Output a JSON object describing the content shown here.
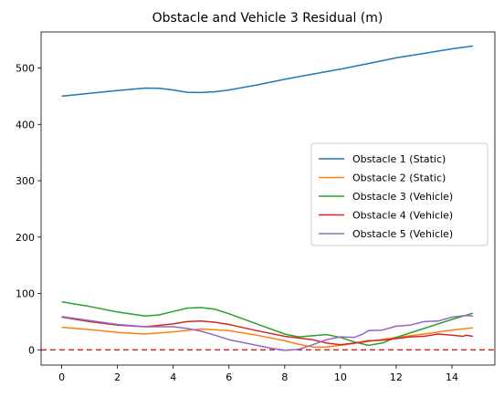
{
  "chart_data": {
    "type": "line",
    "title": "Obstacle and Vehicle 3 Residual (m)",
    "xlabel": "",
    "ylabel": "",
    "xlim": [
      -0.74,
      15.54
    ],
    "ylim": [
      -27,
      564
    ],
    "x_ticks": [
      0,
      2,
      4,
      6,
      8,
      10,
      12,
      14
    ],
    "y_ticks": [
      0,
      100,
      200,
      300,
      400,
      500
    ],
    "legend_position": "center-right",
    "reference_line": {
      "y": 0,
      "color": "#d62728",
      "style": "dashed"
    },
    "series": [
      {
        "name": "Obstacle 1 (Static)",
        "color": "#1f77b4",
        "points": [
          [
            0,
            450
          ],
          [
            1,
            455
          ],
          [
            2,
            460
          ],
          [
            3,
            464.5
          ],
          [
            3.5,
            464
          ],
          [
            4,
            461
          ],
          [
            4.5,
            457
          ],
          [
            5,
            456.5
          ],
          [
            5.5,
            458
          ],
          [
            6,
            461
          ],
          [
            7,
            470
          ],
          [
            8,
            480
          ],
          [
            9,
            489
          ],
          [
            10,
            498
          ],
          [
            11,
            508
          ],
          [
            12,
            518
          ],
          [
            13,
            526
          ],
          [
            14,
            534
          ],
          [
            14.75,
            539
          ]
        ]
      },
      {
        "name": "Obstacle 2 (Static)",
        "color": "#ff7f0e",
        "points": [
          [
            0,
            40
          ],
          [
            1,
            36
          ],
          [
            2,
            31
          ],
          [
            3,
            28
          ],
          [
            4,
            32
          ],
          [
            5,
            37
          ],
          [
            6,
            34
          ],
          [
            7,
            26
          ],
          [
            8,
            16
          ],
          [
            8.5,
            10
          ],
          [
            9,
            5
          ],
          [
            9.5,
            5
          ],
          [
            10,
            8
          ],
          [
            11,
            15
          ],
          [
            12,
            22
          ],
          [
            13,
            28
          ],
          [
            14,
            35
          ],
          [
            14.75,
            39
          ]
        ]
      },
      {
        "name": "Obstacle 3 (Vehicle)",
        "color": "#2ca02c",
        "points": [
          [
            0,
            85
          ],
          [
            1,
            77
          ],
          [
            2,
            67
          ],
          [
            3,
            60
          ],
          [
            3.5,
            62
          ],
          [
            4,
            68
          ],
          [
            4.5,
            74
          ],
          [
            5,
            75
          ],
          [
            5.5,
            72
          ],
          [
            6,
            64
          ],
          [
            7,
            46
          ],
          [
            8,
            28
          ],
          [
            8.5,
            23
          ],
          [
            9,
            25
          ],
          [
            9.5,
            27
          ],
          [
            10,
            22
          ],
          [
            10.5,
            14
          ],
          [
            11,
            8
          ],
          [
            11.5,
            12
          ],
          [
            12,
            22
          ],
          [
            13,
            38
          ],
          [
            14,
            54
          ],
          [
            14.75,
            65
          ]
        ]
      },
      {
        "name": "Obstacle 4 (Vehicle)",
        "color": "#d62728",
        "points": [
          [
            0,
            58
          ],
          [
            1,
            50
          ],
          [
            2,
            44
          ],
          [
            3,
            41
          ],
          [
            4,
            46
          ],
          [
            4.5,
            50
          ],
          [
            5,
            51
          ],
          [
            5.5,
            49
          ],
          [
            6,
            45
          ],
          [
            7,
            34
          ],
          [
            8,
            24
          ],
          [
            9,
            18
          ],
          [
            9.5,
            12
          ],
          [
            10,
            9
          ],
          [
            10.5,
            12
          ],
          [
            11,
            16
          ],
          [
            11.5,
            17
          ],
          [
            12,
            20
          ],
          [
            12.5,
            23
          ],
          [
            13,
            24
          ],
          [
            13.5,
            28
          ],
          [
            14,
            26
          ],
          [
            14.4,
            24
          ],
          [
            14.5,
            26
          ],
          [
            14.75,
            24
          ]
        ]
      },
      {
        "name": "Obstacle 5 (Vehicle)",
        "color": "#9467bd",
        "points": [
          [
            0,
            59
          ],
          [
            1,
            52
          ],
          [
            2,
            45
          ],
          [
            3,
            41
          ],
          [
            4,
            41
          ],
          [
            4.5,
            38
          ],
          [
            5,
            33
          ],
          [
            5.5,
            26
          ],
          [
            6,
            18
          ],
          [
            7,
            8
          ],
          [
            7.5,
            3
          ],
          [
            8,
            -1
          ],
          [
            8.5,
            1
          ],
          [
            9,
            9
          ],
          [
            9.5,
            18
          ],
          [
            10,
            23
          ],
          [
            10.5,
            22
          ],
          [
            10.8,
            28
          ],
          [
            11,
            34
          ],
          [
            11.5,
            35
          ],
          [
            12,
            42
          ],
          [
            12.5,
            44
          ],
          [
            13,
            50
          ],
          [
            13.5,
            51
          ],
          [
            14,
            58
          ],
          [
            14.5,
            61
          ],
          [
            14.75,
            60
          ]
        ]
      }
    ]
  }
}
